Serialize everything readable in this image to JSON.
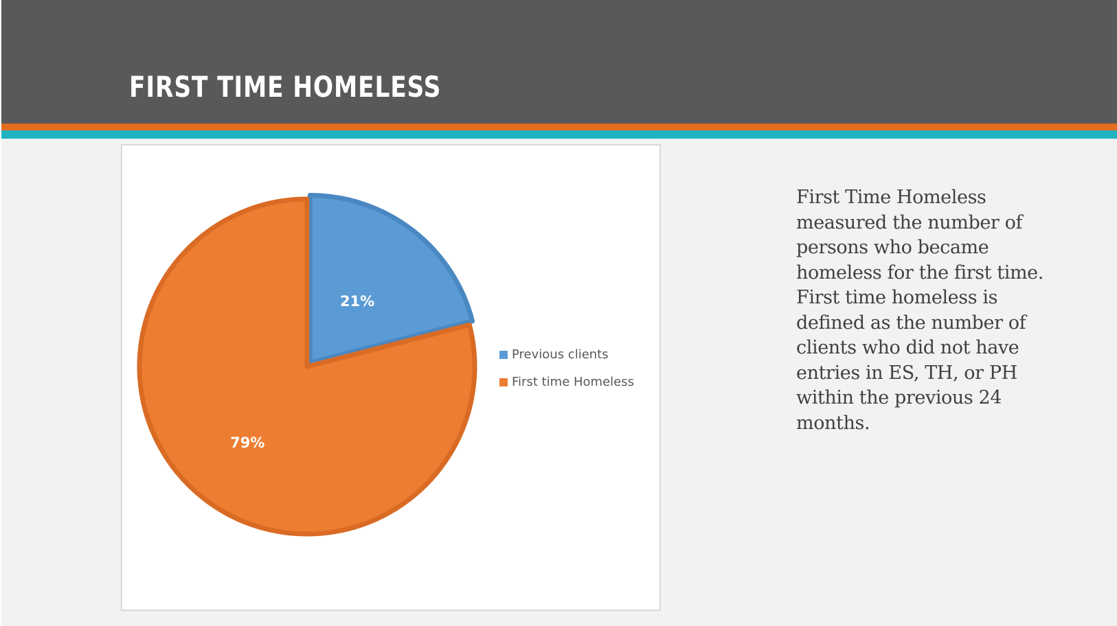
{
  "slide": {
    "title": "FIRST TIME HOMELESS",
    "description": "First Time Homeless measured the number of persons who became homeless for the first time. First time homeless is defined as the number of clients who did not have entries in ES, TH, or PH within the previous 24 months."
  },
  "colors": {
    "header": "#595959",
    "accent_orange": "#e46c1f",
    "accent_teal": "#1fb3c2",
    "previous_clients": "#5b9bd5",
    "first_time_homeless": "#ed7d31"
  },
  "chart_data": {
    "type": "pie",
    "title": "",
    "categories": [
      "Previous clients",
      "First time Homeless"
    ],
    "values": [
      21,
      79
    ],
    "data_labels": [
      "21%",
      "79%"
    ],
    "colors": [
      "#5b9bd5",
      "#ed7d31"
    ],
    "legend": {
      "position": "right",
      "entries": [
        "Previous clients",
        "First time Homeless"
      ]
    },
    "start_angle_deg": 0,
    "direction": "clockwise"
  }
}
